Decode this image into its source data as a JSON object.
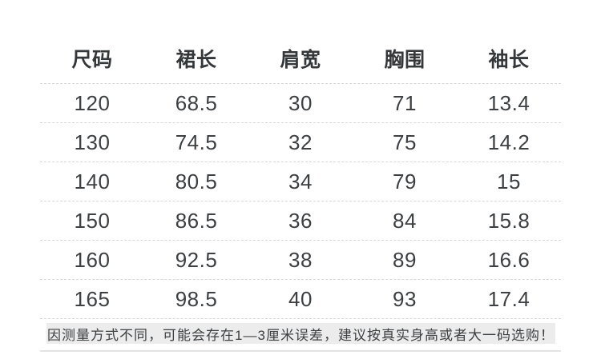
{
  "chart_data": {
    "type": "table",
    "columns": [
      "尺码",
      "裙长",
      "肩宽",
      "胸围",
      "袖长"
    ],
    "rows": [
      [
        "120",
        "68.5",
        "30",
        "71",
        "13.4"
      ],
      [
        "130",
        "74.5",
        "32",
        "75",
        "14.2"
      ],
      [
        "140",
        "80.5",
        "34",
        "79",
        "15"
      ],
      [
        "150",
        "86.5",
        "36",
        "84",
        "15.8"
      ],
      [
        "160",
        "92.5",
        "38",
        "89",
        "16.6"
      ],
      [
        "165",
        "98.5",
        "40",
        "93",
        "17.4"
      ]
    ],
    "layout": {
      "row_divider": "dashed",
      "alignment": "center"
    }
  },
  "notice": {
    "text": "因测量方式不同，可能会存在1—3厘米误差，建议按真实身高或者大一码选购！"
  },
  "colors": {
    "text": "#3d4043",
    "header_text": "#35383b",
    "divider": "#d8d8d8",
    "notice_bg": "#ececec",
    "bottom_line": "#e3e3e3",
    "background": "#ffffff"
  }
}
